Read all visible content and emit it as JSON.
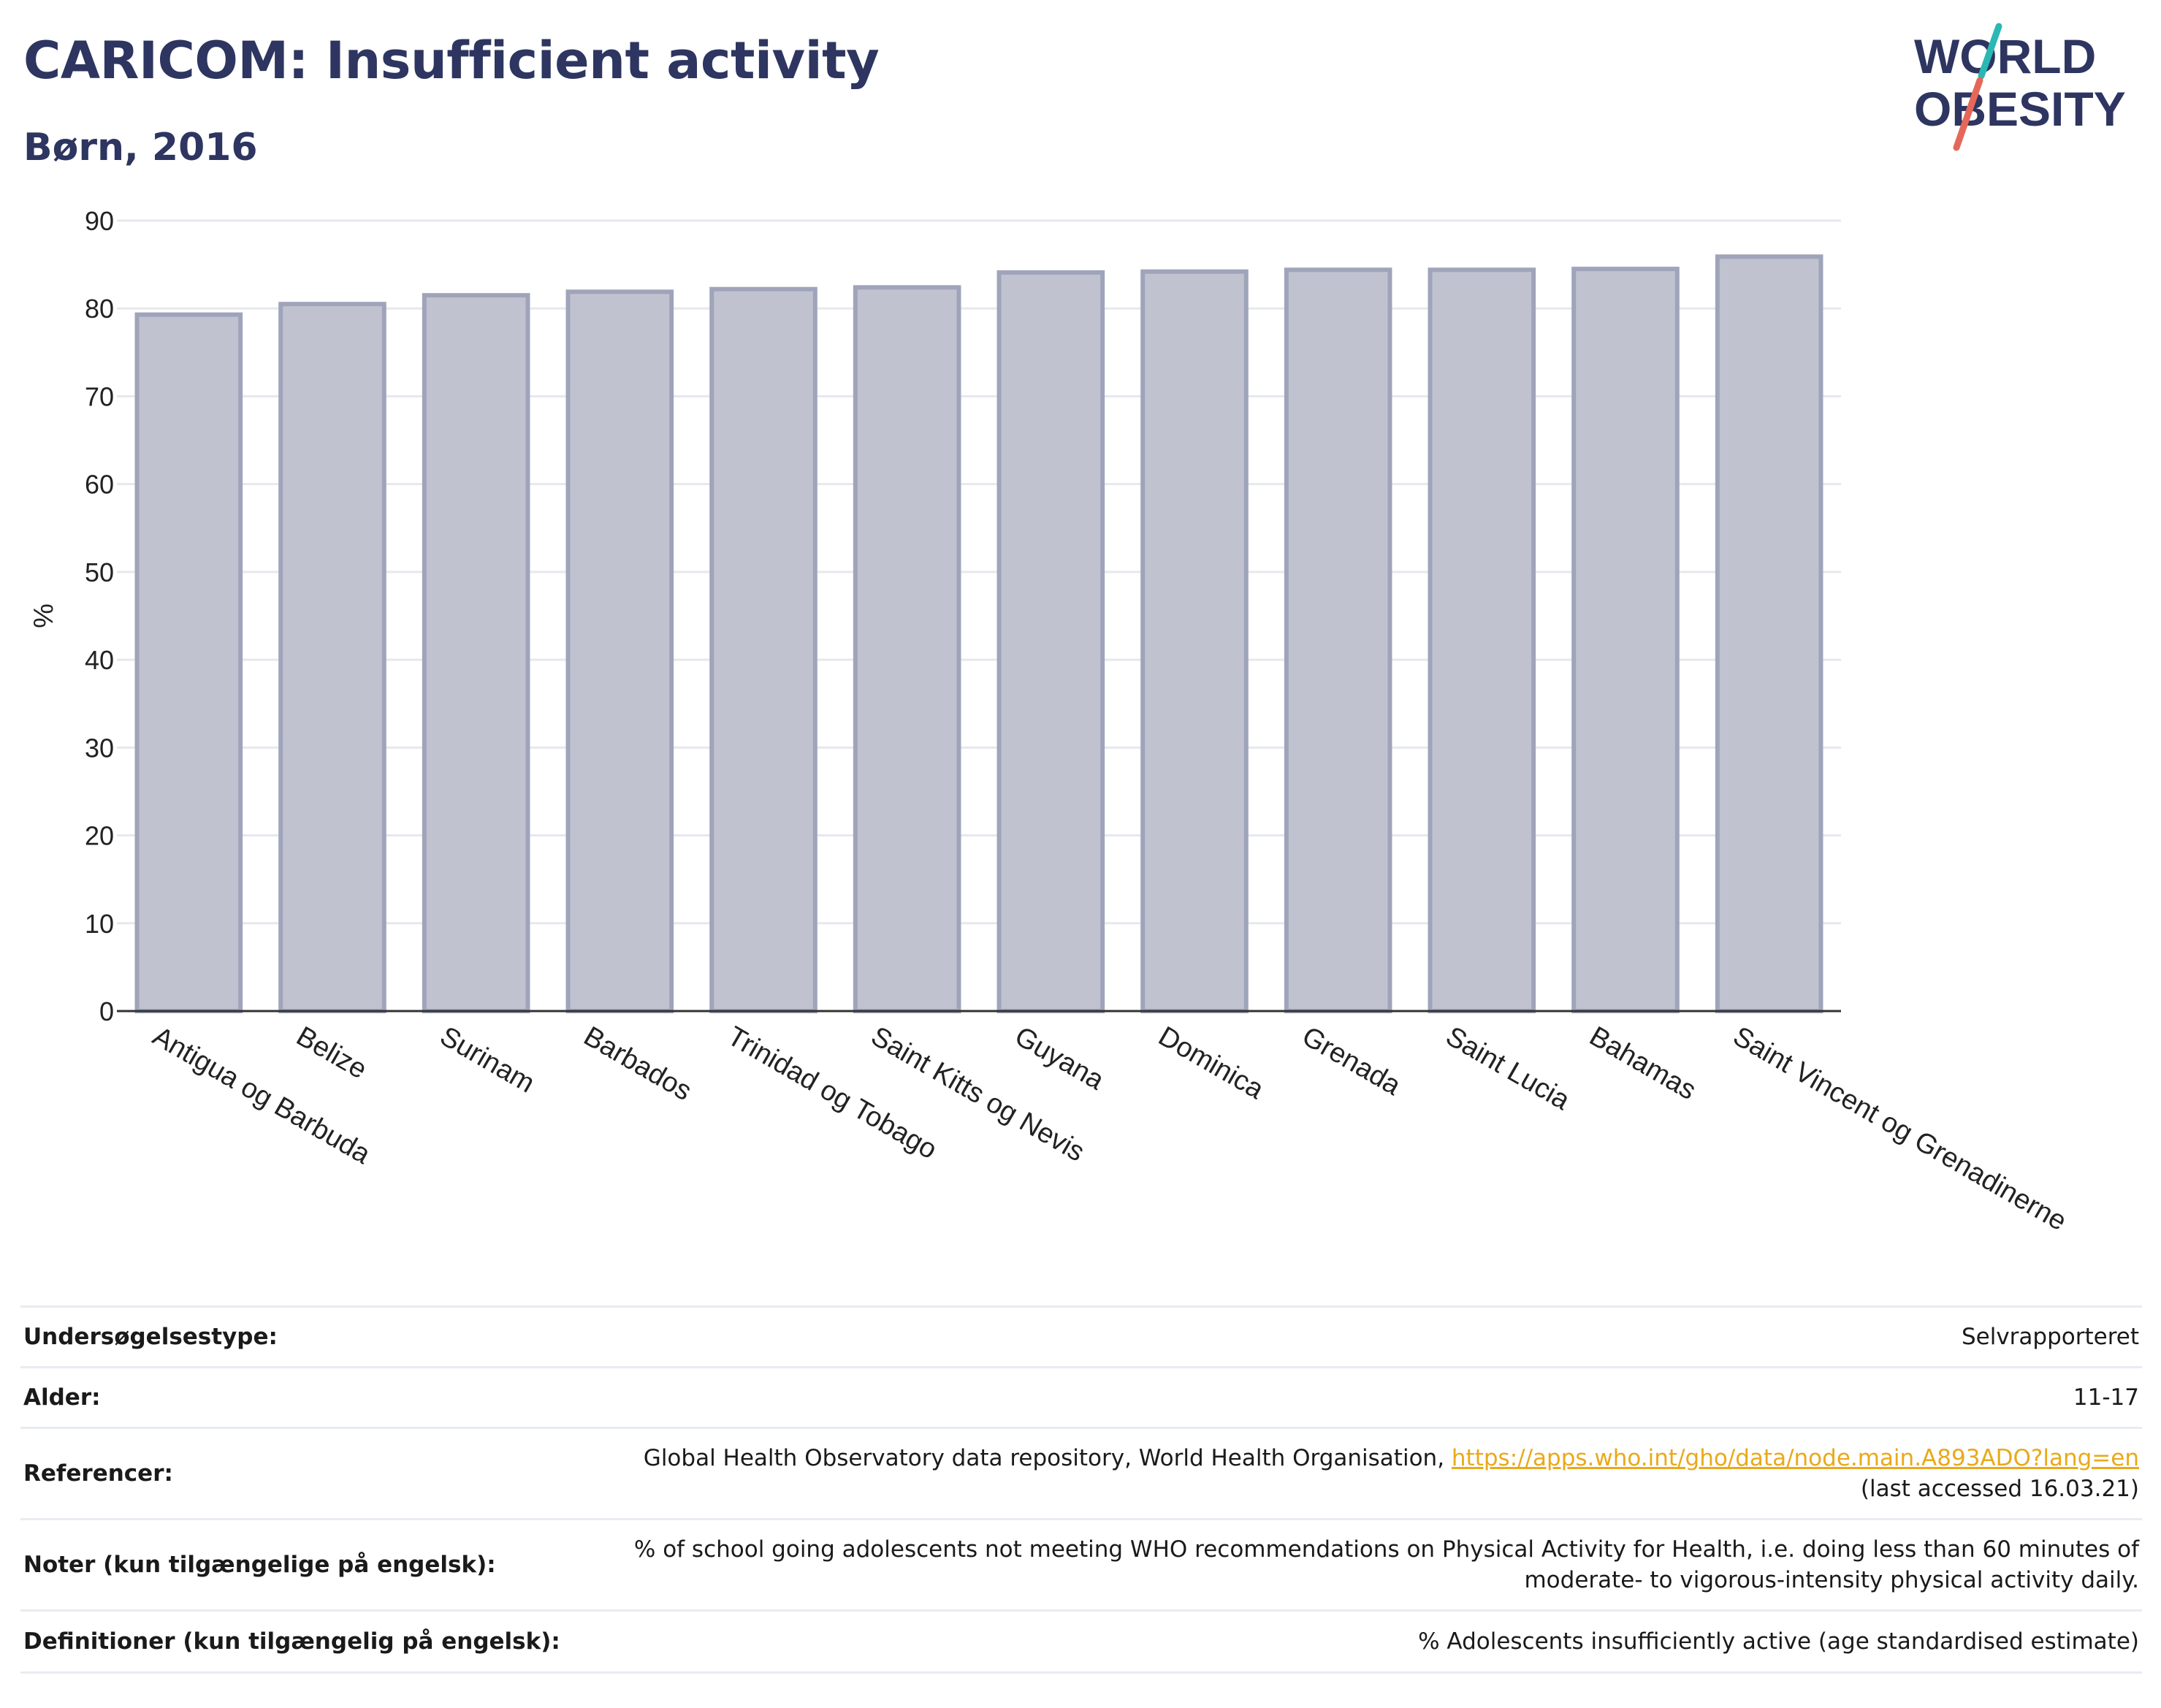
{
  "header": {
    "title": "CARICOM: Insufficient activity",
    "subtitle": "Børn, 2016"
  },
  "logo": {
    "line1": "WORLD",
    "line2": "OBESITY",
    "colors": {
      "text": "#2d3560",
      "slash_top": "#2bb8b4",
      "slash_bottom": "#e5675a"
    }
  },
  "chart_data": {
    "type": "bar",
    "title": "CARICOM: Insufficient activity",
    "subtitle": "Børn, 2016",
    "xlabel": "",
    "ylabel": "%",
    "ylim": [
      0,
      90
    ],
    "yticks": [
      0,
      10,
      20,
      30,
      40,
      50,
      60,
      70,
      80,
      90
    ],
    "grid": true,
    "categories": [
      "Antigua og Barbuda",
      "Belize",
      "Surinam",
      "Barbados",
      "Trinidad og Tobago",
      "Saint Kitts og Nevis",
      "Guyana",
      "Dominica",
      "Grenada",
      "Saint Lucia",
      "Bahamas",
      "Saint Vincent og Grenadinerne"
    ],
    "values": [
      79.3,
      80.5,
      81.5,
      81.9,
      82.2,
      82.4,
      84.1,
      84.2,
      84.4,
      84.4,
      84.5,
      85.9
    ],
    "colors": {
      "bar_fill": "#c0c3cf",
      "bar_stroke": "#9fa4ba",
      "grid": "#e6e8ee",
      "axis": "#333333",
      "tick_text": "#222222"
    }
  },
  "meta": {
    "survey_type_label": "Undersøgelsestype:",
    "survey_type_value": "Selvrapporteret",
    "age_label": "Alder:",
    "age_value": "11-17",
    "references_label": "Referencer:",
    "references_text": "Global Health Observatory data repository, World Health Organisation, ",
    "references_link": "https://apps.who.int/gho/data/node.main.A893ADO?lang=en",
    "references_accessed": "(last accessed 16.03.21)",
    "notes_label": "Noter (kun tilgængelige på engelsk):",
    "notes_line1": "% of school going adolescents not meeting WHO recommendations on Physical Activity for Health, i.e. doing less than 60 minutes of",
    "notes_line2": "moderate- to vigorous-intensity physical activity daily.",
    "definitions_label": "Definitioner (kun tilgængelig på engelsk):",
    "definitions_value": "% Adolescents insufficiently active (age standardised estimate)"
  }
}
